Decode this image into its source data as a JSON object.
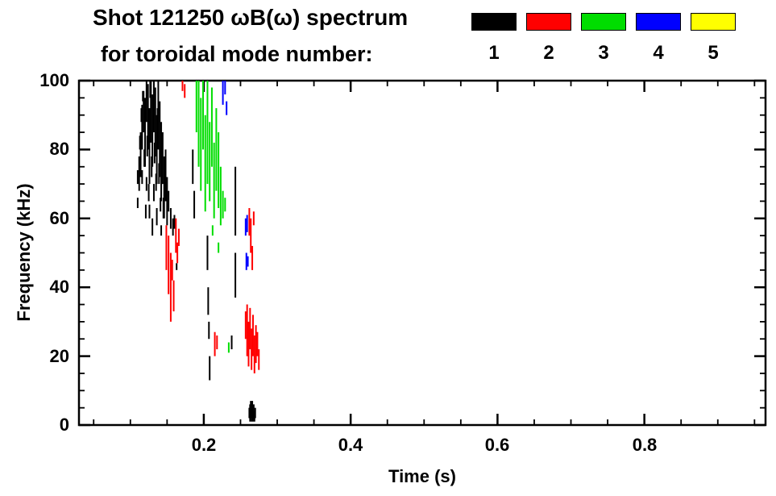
{
  "header": {
    "title": "Shot 121250 ωB(ω) spectrum",
    "subtitle": "for toroidal mode number:"
  },
  "chart_data": {
    "type": "scatter",
    "title": "Shot 121250 ωB(ω) spectrum",
    "subtitle": "for toroidal mode number:",
    "xlabel": "Time (s)",
    "ylabel": "Frequency (kHz)",
    "xlim": [
      0.03,
      0.965
    ],
    "ylim": [
      0,
      100
    ],
    "grid": false,
    "legend_position": "top-right",
    "x_major_ticks": [
      0.2,
      0.4,
      0.6,
      0.8
    ],
    "x_tick_labels": [
      "0.2",
      "0.4",
      "0.6",
      "0.8"
    ],
    "x_minor_step": 0.05,
    "y_major_ticks": [
      0,
      20,
      40,
      60,
      80,
      100
    ],
    "y_tick_labels": [
      "0",
      "20",
      "40",
      "60",
      "80",
      "100"
    ],
    "y_minor_step": 5,
    "series": [
      {
        "name": "1",
        "color": "#000000",
        "segments": [
          [
            0.11,
            63,
            66
          ],
          [
            0.11,
            70,
            74
          ],
          [
            0.112,
            68,
            78
          ],
          [
            0.113,
            80,
            84
          ],
          [
            0.114,
            72,
            85
          ],
          [
            0.115,
            88,
            92
          ],
          [
            0.116,
            80,
            93
          ],
          [
            0.116,
            70,
            74
          ],
          [
            0.117,
            94,
            97
          ],
          [
            0.118,
            85,
            97
          ],
          [
            0.119,
            75,
            80
          ],
          [
            0.12,
            75,
            95
          ],
          [
            0.121,
            60,
            64
          ],
          [
            0.122,
            88,
            100
          ],
          [
            0.122,
            68,
            72
          ],
          [
            0.123,
            78,
            84
          ],
          [
            0.124,
            80,
            99
          ],
          [
            0.125,
            65,
            70
          ],
          [
            0.126,
            70,
            92
          ],
          [
            0.126,
            60,
            64
          ],
          [
            0.127,
            95,
            100
          ],
          [
            0.128,
            82,
            100
          ],
          [
            0.129,
            72,
            78
          ],
          [
            0.13,
            75,
            96
          ],
          [
            0.13,
            55,
            60
          ],
          [
            0.131,
            85,
            90
          ],
          [
            0.132,
            85,
            100
          ],
          [
            0.132,
            65,
            70
          ],
          [
            0.133,
            76,
            82
          ],
          [
            0.134,
            78,
            98
          ],
          [
            0.135,
            68,
            73
          ],
          [
            0.136,
            70,
            90
          ],
          [
            0.136,
            58,
            63
          ],
          [
            0.137,
            85,
            92
          ],
          [
            0.138,
            80,
            100
          ],
          [
            0.139,
            70,
            76
          ],
          [
            0.14,
            72,
            94
          ],
          [
            0.141,
            62,
            66
          ],
          [
            0.142,
            65,
            88
          ],
          [
            0.142,
            55,
            58
          ],
          [
            0.143,
            74,
            80
          ],
          [
            0.144,
            70,
            85
          ],
          [
            0.145,
            60,
            66
          ],
          [
            0.146,
            60,
            78
          ],
          [
            0.147,
            68,
            74
          ],
          [
            0.148,
            65,
            80
          ],
          [
            0.15,
            58,
            72
          ],
          [
            0.152,
            62,
            68
          ],
          [
            0.155,
            57,
            63
          ],
          [
            0.158,
            55,
            60
          ],
          [
            0.16,
            57,
            61
          ],
          [
            0.163,
            45,
            47
          ],
          [
            0.185,
            70,
            80
          ],
          [
            0.187,
            60,
            68
          ],
          [
            0.205,
            45,
            55
          ],
          [
            0.206,
            32,
            40
          ],
          [
            0.207,
            25,
            30
          ],
          [
            0.208,
            13,
            20
          ],
          [
            0.238,
            22,
            26
          ],
          [
            0.243,
            55,
            75
          ],
          [
            0.243,
            37,
            50
          ],
          [
            0.262,
            2,
            5
          ],
          [
            0.263,
            1,
            6
          ],
          [
            0.264,
            2,
            7
          ],
          [
            0.265,
            1,
            6
          ],
          [
            0.266,
            3,
            7
          ],
          [
            0.267,
            1,
            5
          ],
          [
            0.268,
            2,
            6
          ],
          [
            0.269,
            1,
            4
          ],
          [
            0.27,
            2,
            5
          ]
        ]
      },
      {
        "name": "2",
        "color": "#ff0000",
        "segments": [
          [
            0.171,
            97,
            100
          ],
          [
            0.174,
            95,
            99
          ],
          [
            0.149,
            45,
            58
          ],
          [
            0.152,
            38,
            55
          ],
          [
            0.155,
            30,
            50
          ],
          [
            0.157,
            42,
            48
          ],
          [
            0.159,
            33,
            42
          ],
          [
            0.162,
            50,
            60
          ],
          [
            0.164,
            47,
            53
          ],
          [
            0.166,
            52,
            57
          ],
          [
            0.215,
            20,
            27
          ],
          [
            0.218,
            22,
            26
          ],
          [
            0.257,
            25,
            33
          ],
          [
            0.259,
            20,
            35
          ],
          [
            0.261,
            17,
            30
          ],
          [
            0.263,
            22,
            34
          ],
          [
            0.265,
            16,
            28
          ],
          [
            0.267,
            20,
            32
          ],
          [
            0.269,
            15,
            26
          ],
          [
            0.271,
            18,
            29
          ],
          [
            0.273,
            20,
            27
          ],
          [
            0.275,
            16,
            22
          ],
          [
            0.262,
            55,
            63
          ],
          [
            0.264,
            50,
            60
          ],
          [
            0.266,
            45,
            52
          ],
          [
            0.268,
            58,
            62
          ]
        ]
      },
      {
        "name": "3",
        "color": "#00dd00",
        "segments": [
          [
            0.19,
            85,
            100
          ],
          [
            0.193,
            75,
            100
          ],
          [
            0.196,
            68,
            95
          ],
          [
            0.199,
            80,
            100
          ],
          [
            0.202,
            62,
            90
          ],
          [
            0.205,
            70,
            100
          ],
          [
            0.208,
            65,
            88
          ],
          [
            0.211,
            75,
            98
          ],
          [
            0.214,
            60,
            82
          ],
          [
            0.217,
            68,
            92
          ],
          [
            0.22,
            63,
            85
          ],
          [
            0.223,
            58,
            75
          ],
          [
            0.226,
            60,
            68
          ],
          [
            0.212,
            55,
            58
          ],
          [
            0.22,
            50,
            53
          ],
          [
            0.229,
            62,
            66
          ],
          [
            0.234,
            21,
            24
          ]
        ]
      },
      {
        "name": "4",
        "color": "#0000ff",
        "segments": [
          [
            0.226,
            93,
            100
          ],
          [
            0.229,
            96,
            100
          ],
          [
            0.231,
            90,
            94
          ],
          [
            0.257,
            55,
            60
          ],
          [
            0.259,
            56,
            61
          ],
          [
            0.258,
            45,
            50
          ],
          [
            0.26,
            46,
            49
          ]
        ]
      },
      {
        "name": "5",
        "color": "#ffff00",
        "segments": []
      }
    ]
  }
}
